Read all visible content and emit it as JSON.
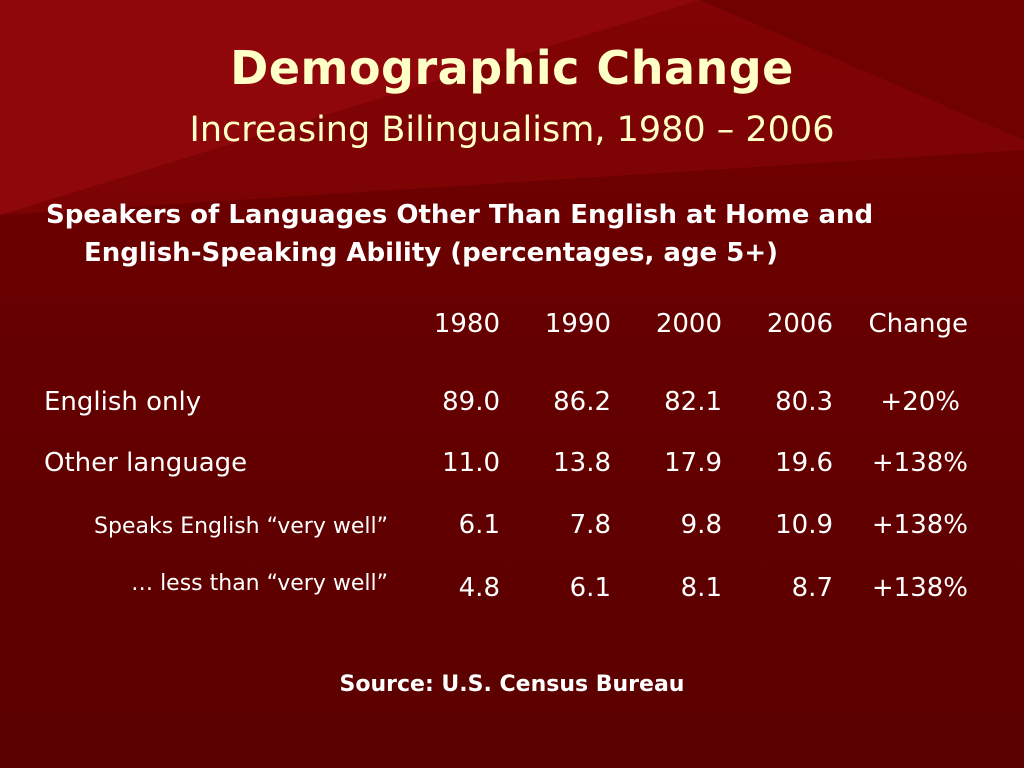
{
  "slide": {
    "title": "Demographic Change",
    "subtitle": "Increasing Bilingualism, 1980 – 2006",
    "heading_line1": "Speakers of Languages Other Than English at Home and",
    "heading_line2": "English-Speaking Ability (percentages, age 5+)",
    "source": "Source: U.S. Census Bureau"
  },
  "colors": {
    "background": "#6b0000",
    "title_text": "#ffffc8",
    "body_text": "#ffffff"
  },
  "table": {
    "columns": [
      "1980",
      "1990",
      "2000",
      "2006",
      "Change"
    ],
    "rows": [
      {
        "label": "English only",
        "values": [
          "89.0",
          "86.2",
          "82.1",
          "80.3",
          "+20%"
        ]
      },
      {
        "label": "Other language",
        "values": [
          "11.0",
          "13.8",
          "17.9",
          "19.6",
          "+138%"
        ]
      },
      {
        "label": "Speaks English “very well”",
        "values": [
          "6.1",
          "7.8",
          "9.8",
          "10.9",
          "+138%"
        ]
      },
      {
        "label": "… less than “very well”",
        "values": [
          "4.8",
          "6.1",
          "8.1",
          "8.7",
          "+138%"
        ]
      }
    ]
  }
}
